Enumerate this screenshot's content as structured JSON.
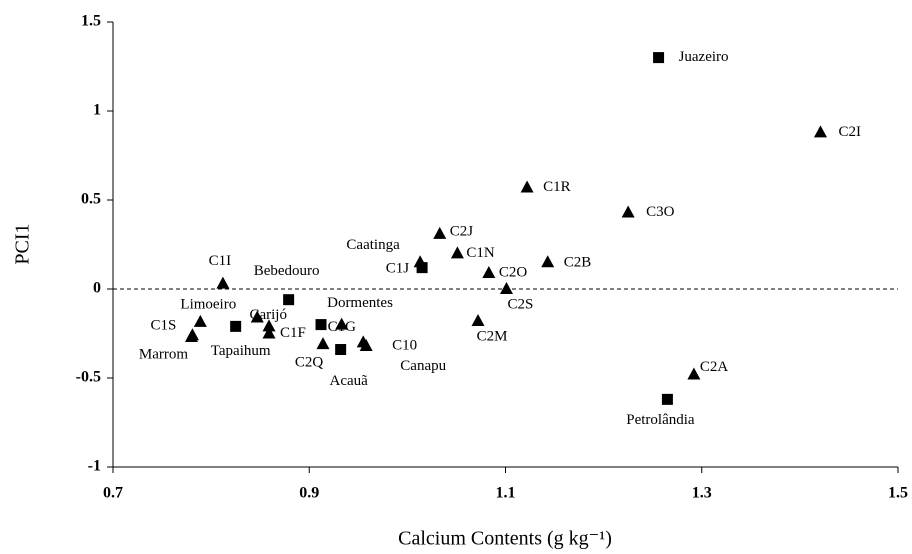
{
  "chart_data": {
    "type": "scatter",
    "xlabel": "Calcium Contents (g kg⁻¹)",
    "ylabel": "PCI1",
    "xlim": [
      0.7,
      1.5
    ],
    "xticks": [
      0.7,
      0.9,
      1.1,
      1.3,
      1.5
    ],
    "ylim": [
      -1,
      1.5
    ],
    "yticks": [
      -1,
      -0.5,
      0,
      0.5,
      1,
      1.5
    ],
    "reference_line": 0,
    "series": [
      {
        "marker": "square",
        "color": "#000000",
        "labels": [
          "Juazeiro",
          "Petrolândia",
          "Caatinga",
          "Bebedouro",
          "Tapaihum",
          "Dormentes",
          "Acauã"
        ],
        "x": [
          1.256,
          1.265,
          1.015,
          0.879,
          0.825,
          0.912,
          0.932
        ],
        "values": [
          1.3,
          -0.62,
          0.12,
          -0.06,
          -0.21,
          -0.2,
          -0.34
        ]
      },
      {
        "marker": "triangle",
        "color": "#000000",
        "labels": [
          "C2I",
          "C1R",
          "C3O",
          "C2J",
          "C1N",
          "C2B",
          "C2O",
          "C1J",
          "C2S",
          "C1I",
          "C2M",
          "C2A",
          "Limoeiro",
          "C1S",
          "Marrom",
          "Carijó",
          null,
          "C1F",
          "C1G",
          "C2Q",
          "C10",
          "Canapu"
        ],
        "x": [
          1.421,
          1.122,
          1.225,
          1.033,
          1.051,
          1.143,
          1.083,
          1.013,
          1.101,
          0.812,
          1.072,
          1.292,
          0.789,
          0.781,
          0.78,
          0.847,
          0.859,
          0.859,
          0.933,
          0.914,
          0.958,
          0.955
        ],
        "values": [
          0.88,
          0.57,
          0.43,
          0.31,
          0.2,
          0.15,
          0.09,
          0.15,
          0,
          0.03,
          -0.18,
          -0.48,
          -0.185,
          -0.26,
          -0.27,
          -0.16,
          -0.21,
          -0.25,
          -0.2,
          -0.31,
          -0.32,
          -0.3
        ]
      }
    ]
  }
}
